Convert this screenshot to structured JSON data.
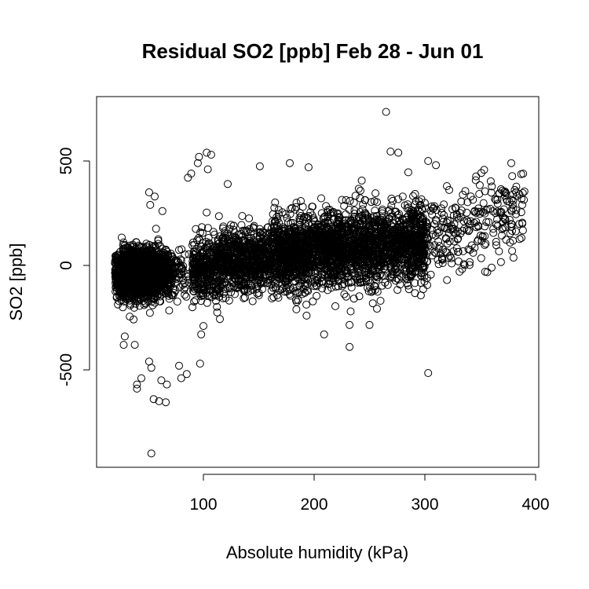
{
  "chart_data": {
    "type": "scatter",
    "title": "Residual SO2 [ppb] Feb 28 - Jun 01",
    "xlabel": "Absolute humidity (kPa)",
    "ylabel": "SO2 [ppb]",
    "xlim": [
      17,
      390
    ],
    "ylim": [
      -905,
      745
    ],
    "xticks": [
      100,
      200,
      300,
      400
    ],
    "yticks": [
      -500,
      0,
      500
    ],
    "xtick_labels": [
      "100",
      "200",
      "300",
      "400"
    ],
    "ytick_labels": [
      "-500",
      "0",
      "500"
    ],
    "grid": false,
    "marker": "open-circle",
    "clusters": [
      {
        "x": [
          20,
          90
        ],
        "y_center": [
          -40,
          -30
        ],
        "spread": 55,
        "count": 2200
      },
      {
        "x": [
          90,
          160
        ],
        "y_center": [
          -30,
          50
        ],
        "spread": 75,
        "count": 1000
      },
      {
        "x": [
          160,
          300
        ],
        "y_center": [
          50,
          110
        ],
        "spread": 90,
        "count": 2400
      },
      {
        "x": [
          300,
          390
        ],
        "y_center": [
          120,
          270
        ],
        "spread": 100,
        "count": 260
      }
    ],
    "outliers": [
      {
        "x": 53,
        "y": -900
      },
      {
        "x": 60,
        "y": -650
      },
      {
        "x": 66,
        "y": -655
      },
      {
        "x": 55,
        "y": -640
      },
      {
        "x": 40,
        "y": -590
      },
      {
        "x": 40,
        "y": -570
      },
      {
        "x": 44,
        "y": -540
      },
      {
        "x": 51,
        "y": -460
      },
      {
        "x": 53,
        "y": -490
      },
      {
        "x": 67,
        "y": -570
      },
      {
        "x": 62,
        "y": -550
      },
      {
        "x": 78,
        "y": -480
      },
      {
        "x": 97,
        "y": -470
      },
      {
        "x": 85,
        "y": -520
      },
      {
        "x": 80,
        "y": -540
      },
      {
        "x": 28,
        "y": -380
      },
      {
        "x": 29,
        "y": -340
      },
      {
        "x": 38,
        "y": -380
      },
      {
        "x": 51,
        "y": 350
      },
      {
        "x": 56,
        "y": 330
      },
      {
        "x": 52,
        "y": 290
      },
      {
        "x": 63,
        "y": 260
      },
      {
        "x": 89,
        "y": 440
      },
      {
        "x": 86,
        "y": 420
      },
      {
        "x": 95,
        "y": 490
      },
      {
        "x": 96,
        "y": 520
      },
      {
        "x": 103,
        "y": 540
      },
      {
        "x": 107,
        "y": 530
      },
      {
        "x": 104,
        "y": 460
      },
      {
        "x": 122,
        "y": 390
      },
      {
        "x": 265,
        "y": 735
      },
      {
        "x": 269,
        "y": 545
      },
      {
        "x": 276,
        "y": 540
      },
      {
        "x": 303,
        "y": 500
      },
      {
        "x": 310,
        "y": 480
      },
      {
        "x": 378,
        "y": 490
      },
      {
        "x": 388,
        "y": 200
      },
      {
        "x": 303,
        "y": -515
      },
      {
        "x": 232,
        "y": -390
      },
      {
        "x": 209,
        "y": -330
      },
      {
        "x": 232,
        "y": -285
      },
      {
        "x": 250,
        "y": -285
      },
      {
        "x": 233,
        "y": -220
      },
      {
        "x": 184,
        "y": -210
      },
      {
        "x": 98,
        "y": -330
      },
      {
        "x": 100,
        "y": -290
      },
      {
        "x": 151,
        "y": 475
      },
      {
        "x": 178,
        "y": 490
      },
      {
        "x": 195,
        "y": 470
      },
      {
        "x": 302,
        "y": -60
      },
      {
        "x": 320,
        "y": -70
      }
    ]
  }
}
